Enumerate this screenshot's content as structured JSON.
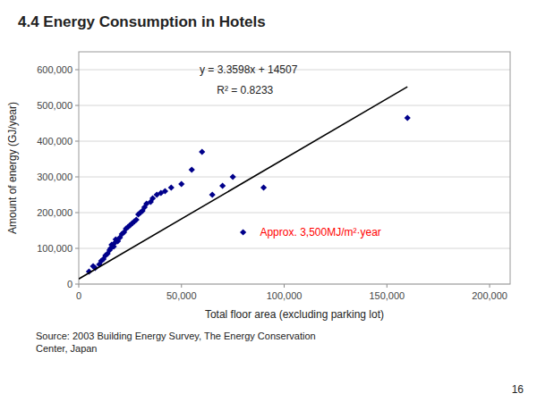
{
  "chart_data": {
    "type": "scatter",
    "title": "4.4 Energy Consumption  in Hotels",
    "xlabel": "Total floor area (excluding parking lot)",
    "ylabel": "Amount of energy (GJ/year)",
    "annotations": [
      {
        "text": "y = 3.3598x + 14507"
      },
      {
        "text": "R² = 0.8233"
      },
      {
        "text": "Approx. 3,500MJ/m²·year",
        "color": "#FF0000"
      }
    ],
    "source": "Source:  2003 Building Energy Survey, The Energy Conservation\nCenter, Japan",
    "page_number": "16",
    "xlim": [
      0,
      210000
    ],
    "ylim": [
      0,
      650000
    ],
    "xticks": [
      0,
      {
        "value": 50000,
        "label": "50,000"
      },
      {
        "value": 100000,
        "label": "100,000"
      },
      {
        "value": 150000,
        "label": "150,000"
      },
      {
        "value": 200000,
        "label": "200,000"
      }
    ],
    "yticks": [
      0,
      {
        "value": 100000,
        "label": "100,000"
      },
      {
        "value": 200000,
        "label": "200,000"
      },
      {
        "value": 300000,
        "label": "300,000"
      },
      {
        "value": 400000,
        "label": "400,000"
      },
      {
        "value": 500000,
        "label": "500,000"
      },
      {
        "value": 600000,
        "label": "600,000"
      }
    ],
    "grid": "y",
    "series": [
      {
        "type": "scatter",
        "marker": "diamond",
        "color": "#00008B",
        "x": [
          5000,
          7000,
          8000,
          10000,
          11000,
          12000,
          13000,
          14000,
          15000,
          15500,
          16000,
          17000,
          17500,
          18000,
          19000,
          20000,
          21000,
          22000,
          23000,
          24000,
          25000,
          26000,
          27000,
          28000,
          29000,
          30000,
          31000,
          32000,
          33000,
          35000,
          36000,
          38000,
          40000,
          42000,
          45000,
          50000,
          55000,
          60000,
          65000,
          70000,
          75000,
          80000,
          90000,
          160000
        ],
        "values": [
          35000,
          50000,
          45000,
          55000,
          65000,
          70000,
          80000,
          85000,
          95000,
          100000,
          110000,
          105000,
          115000,
          125000,
          120000,
          130000,
          140000,
          145000,
          155000,
          160000,
          165000,
          170000,
          175000,
          180000,
          195000,
          200000,
          205000,
          215000,
          225000,
          230000,
          240000,
          250000,
          255000,
          260000,
          270000,
          280000,
          320000,
          370000,
          250000,
          275000,
          300000,
          145000,
          270000,
          465000
        ]
      },
      {
        "type": "line",
        "line_style": "solid",
        "color": "#000000",
        "x": [
          0,
          160000
        ],
        "values": [
          14507,
          552075
        ]
      }
    ]
  }
}
